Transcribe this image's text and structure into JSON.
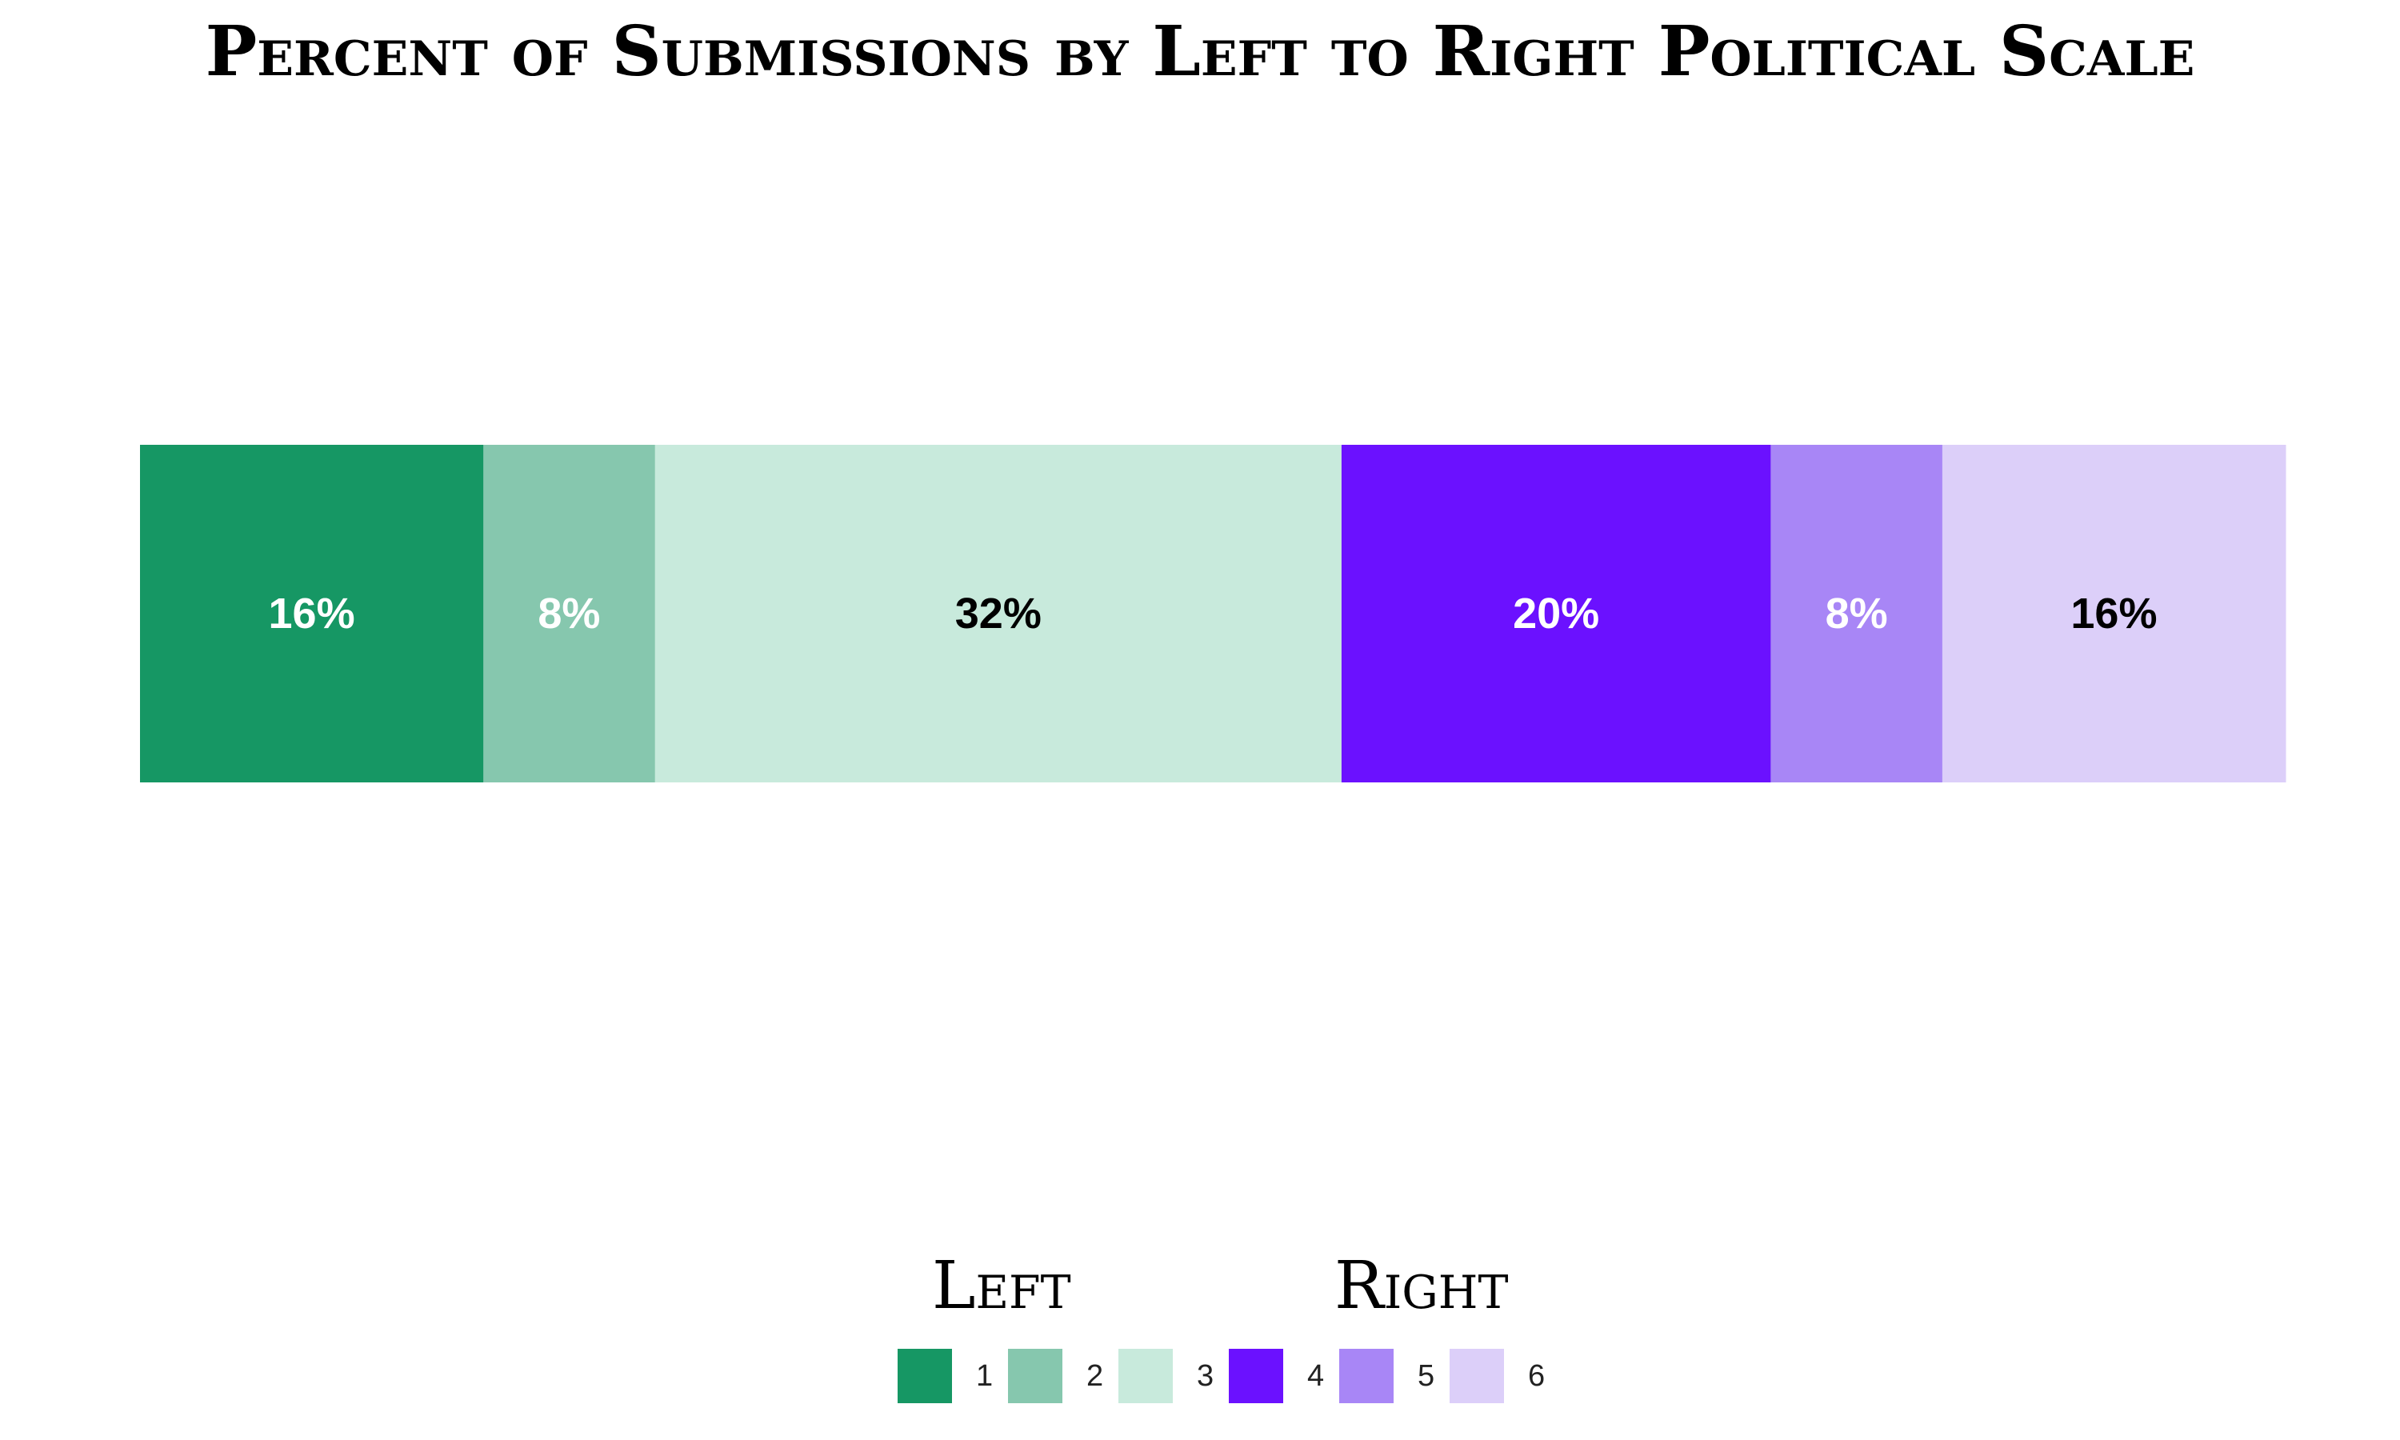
{
  "chart_data": {
    "type": "bar",
    "orientation": "horizontal-stacked",
    "title": "Percent of Submissions by Left to Right Political Scale",
    "categories": [
      "1",
      "2",
      "3",
      "4",
      "5",
      "6"
    ],
    "values": [
      16,
      8,
      32,
      20,
      8,
      16
    ],
    "labels": [
      "16%",
      "8%",
      "32%",
      "20%",
      "8%",
      "16%"
    ],
    "colors": [
      "#169764",
      "#86C7AE",
      "#C8EADC",
      "#6B11FF",
      "#A886F6",
      "#DCCFF9"
    ],
    "label_colors": [
      "#ffffff",
      "#ffffff",
      "#000000",
      "#ffffff",
      "#ffffff",
      "#000000"
    ],
    "legend": {
      "left_label": "Left",
      "right_label": "Right",
      "placement": "bottom"
    },
    "grid": false
  }
}
